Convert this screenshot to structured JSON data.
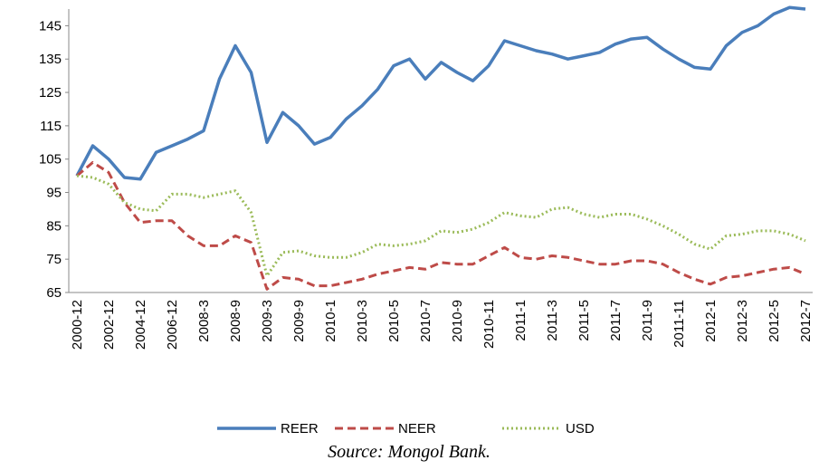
{
  "chart_data": {
    "type": "line",
    "categories": [
      "2000-12",
      null,
      "2002-12",
      null,
      "2004-12",
      null,
      "2006-12",
      null,
      "2008-3",
      null,
      "2008-9",
      null,
      "2009-3",
      null,
      "2009-9",
      null,
      "2010-1",
      null,
      "2010-3",
      null,
      "2010-5",
      null,
      "2010-7",
      null,
      "2010-9",
      null,
      "2010-11",
      null,
      "2011-1",
      null,
      "2011-3",
      null,
      "2011-5",
      null,
      "2011-7",
      null,
      "2011-9",
      null,
      "2011-11",
      null,
      "2012-1",
      null,
      "2012-3",
      null,
      "2012-5",
      null,
      "2012-7"
    ],
    "series": [
      {
        "name": "REER",
        "color": "#4a7ebb",
        "dash": "solid",
        "values": [
          100,
          109,
          105,
          99.5,
          99,
          107,
          109,
          111,
          113.5,
          129,
          139,
          131,
          110,
          119,
          115,
          109.5,
          111.5,
          117,
          121,
          126,
          133,
          135,
          129,
          134,
          131,
          128.5,
          133,
          140.5,
          139,
          137.5,
          136.5,
          135,
          136,
          137,
          139.5,
          141,
          141.5,
          138,
          135,
          132.5,
          132,
          139,
          143,
          145,
          148.5,
          150.5,
          150
        ]
      },
      {
        "name": "NEER",
        "color": "#be4b48",
        "dash": "dashed",
        "values": [
          100,
          104,
          101,
          92,
          86,
          86.5,
          86.5,
          82,
          79,
          79,
          82,
          80,
          66,
          69.5,
          69,
          67,
          67,
          68,
          69,
          70.5,
          71.5,
          72.5,
          72,
          74,
          73.5,
          73.5,
          76,
          78.5,
          75.5,
          75,
          76,
          75.5,
          74.5,
          73.5,
          73.5,
          74.5,
          74.5,
          73.5,
          71,
          69,
          67.5,
          69.5,
          70,
          71,
          72,
          72.5,
          70.5
        ]
      },
      {
        "name": "USD",
        "color": "#9bbb59",
        "dash": "dotted",
        "values": [
          100,
          99.5,
          97.5,
          92,
          90,
          89.5,
          94.5,
          94.5,
          93.5,
          94.5,
          95.5,
          89,
          70,
          77,
          77.5,
          76,
          75.5,
          75.5,
          77,
          79.5,
          79,
          79.5,
          80.5,
          83.5,
          83,
          84,
          86,
          89,
          88,
          87.5,
          90,
          90.5,
          88.5,
          87.5,
          88.5,
          88.5,
          87,
          85,
          82.5,
          79.5,
          78,
          82,
          82.5,
          83.5,
          83.5,
          82.5,
          80.5
        ]
      }
    ],
    "ylim": [
      65,
      150
    ],
    "yticks": [
      65,
      75,
      85,
      95,
      105,
      115,
      125,
      135,
      145
    ],
    "grid": false,
    "legend": "bottom",
    "source": "Source: Mongol Bank."
  }
}
